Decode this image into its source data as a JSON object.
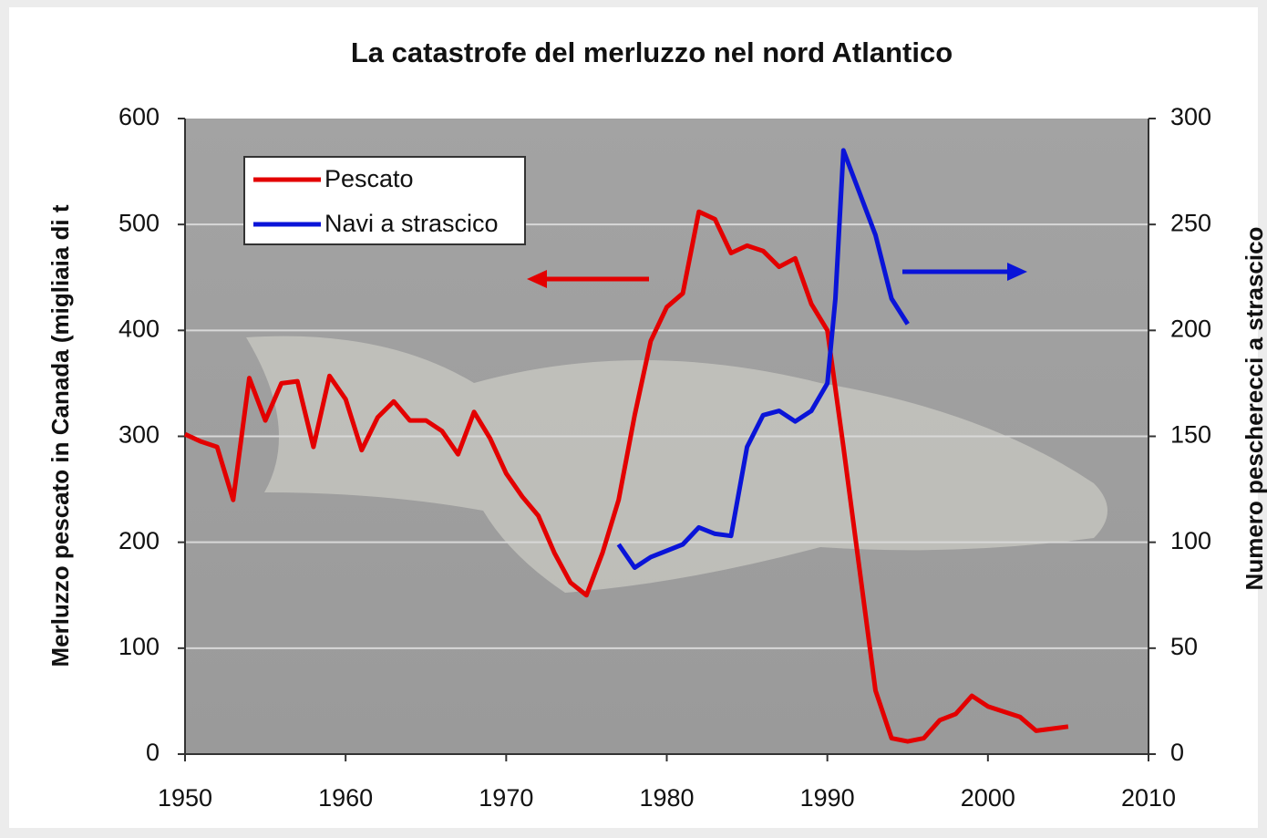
{
  "chart_data": {
    "type": "line",
    "title": "La catastrofe del merluzzo nel nord Atlantico",
    "y_label": "Merluzzo pescato in Canada (migliaia di t",
    "y2_label": "Numero pescherecci a strascico",
    "xlim": [
      1950,
      2010
    ],
    "xticks": [
      1950,
      1960,
      1970,
      1980,
      1990,
      2000,
      2010
    ],
    "ylim": [
      0,
      600
    ],
    "yticks": [
      0,
      100,
      200,
      300,
      400,
      500,
      600
    ],
    "y2lim": [
      0,
      300
    ],
    "y2ticks": [
      0,
      50,
      100,
      150,
      200,
      250,
      300
    ],
    "grid": true,
    "legend": "upper-left",
    "series": [
      {
        "name": "Pescato",
        "color": "#e30000",
        "x": [
          1950,
          1951,
          1952,
          1953,
          1954,
          1955,
          1956,
          1957,
          1958,
          1959,
          1960,
          1961,
          1962,
          1963,
          1964,
          1965,
          1966,
          1967,
          1968,
          1969,
          1970,
          1971,
          1972,
          1973,
          1974,
          1975,
          1976,
          1977,
          1978,
          1979,
          1980,
          1981,
          1982,
          1983,
          1984,
          1985,
          1986,
          1987,
          1988,
          1989,
          1990,
          1991,
          1992,
          1993,
          1994,
          1995,
          1996,
          1997,
          1998,
          1999,
          2000,
          2001,
          2002,
          2003,
          2004,
          2005
        ],
        "values": [
          302,
          295,
          290,
          240,
          355,
          315,
          350,
          352,
          290,
          357,
          335,
          287,
          318,
          333,
          315,
          315,
          305,
          283,
          323,
          298,
          265,
          243,
          225,
          190,
          162,
          150,
          190,
          240,
          320,
          390,
          422,
          435,
          512,
          505,
          473,
          480,
          475,
          460,
          468,
          425,
          400,
          290,
          175,
          60,
          15,
          12,
          15,
          32,
          38,
          55,
          45,
          40,
          35,
          22,
          24,
          26
        ]
      },
      {
        "name": "Navi a strascico",
        "color": "#0a14d8",
        "axis": "y2",
        "x": [
          1977,
          1978,
          1979,
          1980,
          1981,
          1982,
          1983,
          1984,
          1985,
          1986,
          1987,
          1988,
          1989,
          1990,
          1990.5,
          1991,
          1992,
          1993,
          1994,
          1995
        ],
        "values": [
          99,
          88,
          93,
          96,
          99,
          107,
          104,
          103,
          145,
          160,
          162,
          157,
          162,
          175,
          215,
          285,
          265,
          245,
          215,
          203
        ]
      }
    ]
  }
}
